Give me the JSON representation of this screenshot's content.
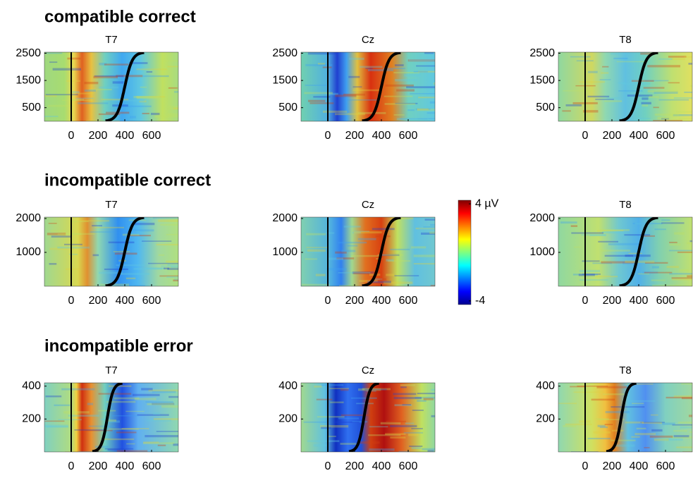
{
  "row_titles": [
    "compatible correct",
    "incompatible correct",
    "incompatible error"
  ],
  "chart_data": [
    {
      "type": "heatmap",
      "title": "T7",
      "xlim": [
        -200,
        800
      ],
      "xticks": [
        0,
        200,
        400,
        600
      ],
      "ylim": [
        0,
        2540
      ],
      "yticks": [
        500,
        1500,
        2500
      ]
    },
    {
      "type": "heatmap",
      "title": "Cz",
      "xlim": [
        -200,
        800
      ],
      "xticks": [
        0,
        200,
        400,
        600
      ],
      "ylim": [
        0,
        2540
      ],
      "yticks": [
        500,
        1500,
        2500
      ]
    },
    {
      "type": "heatmap",
      "title": "T8",
      "xlim": [
        -200,
        800
      ],
      "xticks": [
        0,
        200,
        400,
        600
      ],
      "ylim": [
        0,
        2540
      ],
      "yticks": [
        500,
        1500,
        2500
      ]
    },
    {
      "type": "heatmap",
      "title": "T7",
      "xlim": [
        -200,
        800
      ],
      "xticks": [
        0,
        200,
        400,
        600
      ],
      "ylim": [
        0,
        2040
      ],
      "yticks": [
        1000,
        2000
      ]
    },
    {
      "type": "heatmap",
      "title": "Cz",
      "xlim": [
        -200,
        800
      ],
      "xticks": [
        0,
        200,
        400,
        600
      ],
      "ylim": [
        0,
        2040
      ],
      "yticks": [
        1000,
        2000
      ]
    },
    {
      "type": "heatmap",
      "title": "T8",
      "xlim": [
        -200,
        800
      ],
      "xticks": [
        0,
        200,
        400,
        600
      ],
      "ylim": [
        0,
        2040
      ],
      "yticks": [
        1000,
        2000
      ]
    },
    {
      "type": "heatmap",
      "title": "T7",
      "xlim": [
        -200,
        800
      ],
      "xticks": [
        0,
        200,
        400,
        600
      ],
      "ylim": [
        0,
        420
      ],
      "yticks": [
        200,
        400
      ]
    },
    {
      "type": "heatmap",
      "title": "Cz",
      "xlim": [
        -200,
        800
      ],
      "xticks": [
        0,
        200,
        400,
        600
      ],
      "ylim": [
        0,
        420
      ],
      "yticks": [
        200,
        400
      ]
    },
    {
      "type": "heatmap",
      "title": "T8",
      "xlim": [
        -200,
        800
      ],
      "xticks": [
        0,
        200,
        400,
        600
      ],
      "ylim": [
        0,
        420
      ],
      "yticks": [
        200,
        400
      ]
    }
  ],
  "colorbar": {
    "lim": [
      -4.3,
      4.3
    ],
    "ticks": [
      {
        "value": 4,
        "label": "4 µV"
      },
      -4
    ]
  }
}
